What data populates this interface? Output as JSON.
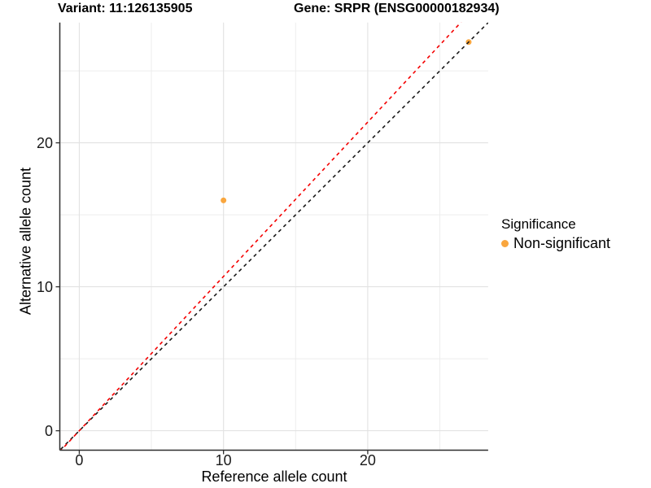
{
  "header": {
    "variant_title": "Variant: 11:126135905",
    "gene_title": "Gene: SRPR (ENSG00000182934)"
  },
  "chart_data": {
    "type": "scatter",
    "xlabel": "Reference allele count",
    "ylabel": "Alternative allele count",
    "xlim": [
      -1.35,
      28.35
    ],
    "ylim": [
      -1.35,
      28.35
    ],
    "x_ticks": [
      0,
      10,
      20
    ],
    "y_ticks": [
      0,
      10,
      20
    ],
    "x_minor_ticks": [
      5,
      15,
      25
    ],
    "y_minor_ticks": [
      5,
      15,
      25
    ],
    "points": [
      {
        "x": 10,
        "y": 16,
        "significance": "Non-significant"
      },
      {
        "x": 27,
        "y": 27,
        "significance": "Non-significant"
      }
    ],
    "point_color": "#F9A63E",
    "point_radius": 3.5,
    "ablines": [
      {
        "name": "identity-line",
        "slope": 1.0,
        "intercept": 0,
        "color": "#1A1A1A",
        "style": "dashed"
      },
      {
        "name": "expected-ratio-line",
        "slope": 1.072,
        "intercept": 0,
        "color": "#F40000",
        "style": "dashed"
      }
    ],
    "legend": {
      "title": "Significance",
      "position": "right",
      "items": [
        {
          "label": "Non-significant",
          "color": "#F9A63E"
        }
      ]
    },
    "grid": true,
    "colors": {
      "grid_major": "#E2E2E2",
      "grid_minor": "#EDEDED",
      "axis_line": "#2E2E2E",
      "tick_label": "#1A1A1A"
    }
  }
}
